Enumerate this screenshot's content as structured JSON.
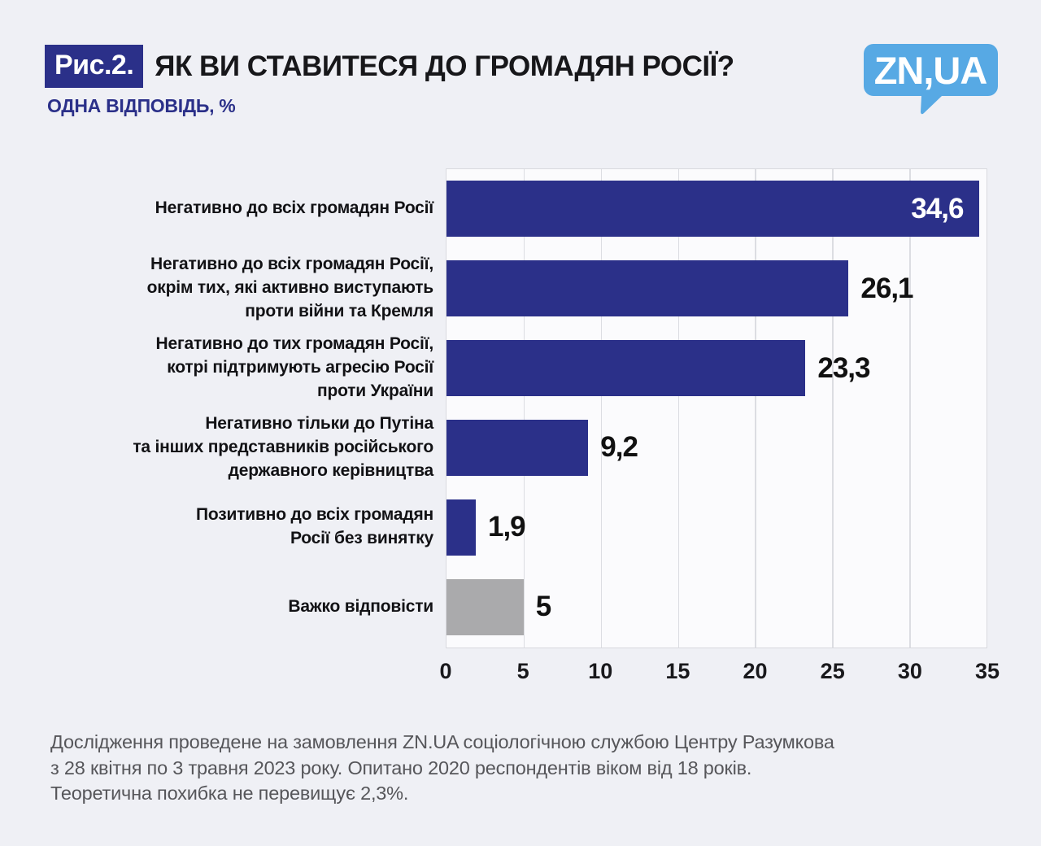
{
  "colors": {
    "navy": "#2b3089",
    "gray_bar": "#aaaaac",
    "logo_blue": "#57a9e4",
    "page_bg": "#eff0f5",
    "plot_bg": "#fbfbfd"
  },
  "header": {
    "figure_label": "Рис.2.",
    "title": "ЯК ВИ СТАВИТЕСЯ ДО ГРОМАДЯН РОСІЇ?",
    "subtitle": "ОДНА ВІДПОВІДЬ, %"
  },
  "logo": {
    "text": "ZN,UA"
  },
  "chart_data": {
    "type": "bar",
    "orientation": "horizontal",
    "title": "ЯК ВИ СТАВИТЕСЯ ДО ГРОМАДЯН РОСІЇ?",
    "subtitle": "ОДНА ВІДПОВІДЬ, %",
    "categories": [
      "Негативно до всіх громадян Росії",
      "Негативно до всіх громадян Росії,\nокрім тих, які активно виступають\nпроти війни та Кремля",
      "Негативно до тих громадян Росії,\nкотрі підтримують агресію Росії\nпроти України",
      "Негативно тільки до Путіна\nта інших представників російського\nдержавного керівництва",
      "Позитивно до всіх громадян\nРосії без винятку",
      "Важко відповісти"
    ],
    "values": [
      34.6,
      26.1,
      23.3,
      9.2,
      1.9,
      5
    ],
    "value_labels": [
      "34,6",
      "26,1",
      "23,3",
      "9,2",
      "1,9",
      "5"
    ],
    "bar_colors": [
      "#2b3089",
      "#2b3089",
      "#2b3089",
      "#2b3089",
      "#2b3089",
      "#aaaaac"
    ],
    "value_label_positions": [
      "inside",
      "outside",
      "outside",
      "outside",
      "outside",
      "outside"
    ],
    "xlim": [
      0,
      35
    ],
    "x_ticks": [
      0,
      5,
      10,
      15,
      20,
      25,
      30,
      35
    ],
    "grid": "vertical"
  },
  "footer": {
    "lines": [
      "Дослідження проведене на замовлення ZN.UA соціологічною службою Центру Разумкова",
      "з 28 квітня по 3 травня 2023 року. Опитано 2020 респондентів віком від 18 років.",
      "Теоретична похибка не перевищує 2,3%."
    ]
  }
}
